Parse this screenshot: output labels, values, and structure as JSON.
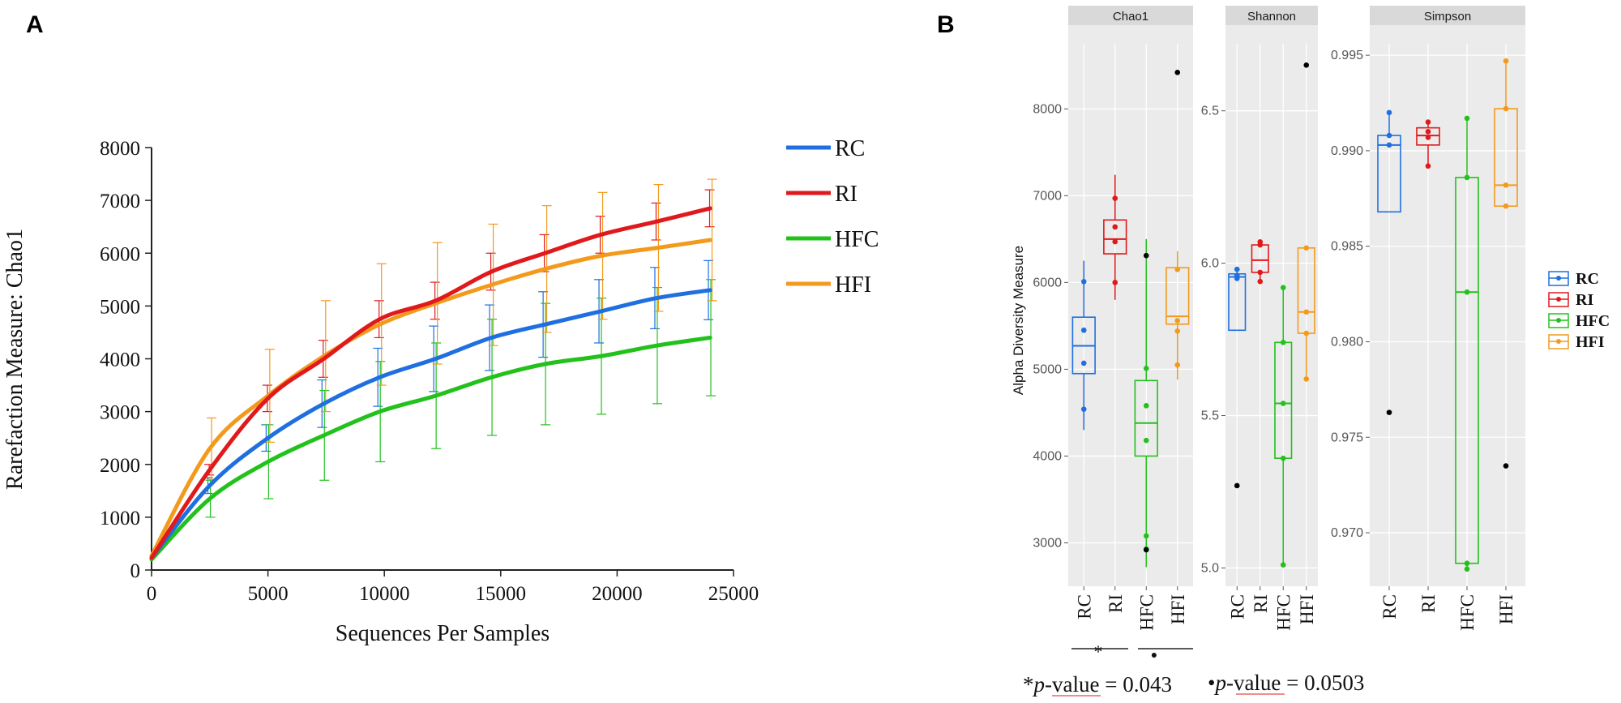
{
  "colors": {
    "RC": "#1f6fe0",
    "RI": "#e0191c",
    "HFC": "#23c11c",
    "HFI": "#f39a1d",
    "outlier": "#000000",
    "panel_bg": "#ebebeb",
    "strip_bg": "#d9d9d9"
  },
  "panels": {
    "a": "A",
    "b": "B"
  },
  "chart_data": [
    {
      "type": "line",
      "title": "",
      "xlabel": "Sequences Per Samples",
      "ylabel": "Rarefaction Measure: Chao1",
      "xlim": [
        0,
        25000
      ],
      "ylim": [
        0,
        8000
      ],
      "xticks": [
        "0",
        "5000",
        "10000",
        "15000",
        "20000",
        "25000"
      ],
      "yticks": [
        "0",
        "1000",
        "2000",
        "3000",
        "4000",
        "5000",
        "6000",
        "7000",
        "8000"
      ],
      "legend": [
        "RC",
        "RI",
        "HFC",
        "HFI"
      ],
      "series": [
        {
          "name": "RC",
          "x": [
            0,
            2500,
            5000,
            7400,
            9800,
            12200,
            14600,
            16900,
            19300,
            21700,
            24000
          ],
          "y": [
            230,
            1600,
            2500,
            3150,
            3650,
            4000,
            4400,
            4650,
            4900,
            5150,
            5300
          ],
          "err": [
            70,
            150,
            250,
            450,
            550,
            620,
            620,
            620,
            600,
            580,
            560
          ]
        },
        {
          "name": "RI",
          "x": [
            0,
            2500,
            5000,
            7400,
            9800,
            12200,
            14600,
            16900,
            19300,
            21700,
            24000
          ],
          "y": [
            230,
            1900,
            3250,
            4000,
            4750,
            5100,
            5650,
            6000,
            6350,
            6600,
            6850
          ],
          "err": [
            70,
            100,
            250,
            350,
            350,
            350,
            350,
            350,
            350,
            350,
            350
          ]
        },
        {
          "name": "HFC",
          "x": [
            0,
            2500,
            5000,
            7400,
            9800,
            12200,
            14600,
            16900,
            19300,
            21700,
            24000
          ],
          "y": [
            200,
            1350,
            2050,
            2550,
            3000,
            3300,
            3650,
            3900,
            4050,
            4250,
            4400
          ],
          "err": [
            70,
            350,
            700,
            850,
            950,
            1000,
            1100,
            1150,
            1100,
            1100,
            1100
          ]
        },
        {
          "name": "HFI",
          "x": [
            0,
            2500,
            5000,
            7400,
            9800,
            12200,
            14600,
            16900,
            19300,
            21700,
            24000
          ],
          "y": [
            270,
            2300,
            3300,
            4050,
            4650,
            5050,
            5400,
            5700,
            5950,
            6100,
            6250
          ],
          "err": [
            70,
            580,
            880,
            1050,
            1150,
            1150,
            1150,
            1200,
            1200,
            1200,
            1150
          ]
        }
      ]
    },
    {
      "type": "box",
      "facet": "Chao1",
      "ylabel": "Alpha Diversity Measure",
      "ylim": [
        2500,
        8750
      ],
      "yticks": [
        3000,
        4000,
        5000,
        6000,
        7000,
        8000
      ],
      "ytick_labels": [
        "3000",
        "4000",
        "5000",
        "6000",
        "7000",
        "8000"
      ],
      "categories": [
        "RC",
        "RI",
        "HFC",
        "HFI"
      ],
      "boxes": [
        {
          "q1": 4950,
          "median": 5270,
          "q3": 5600,
          "wlo": 4300,
          "whi": 6250,
          "points": [
            4540,
            5070,
            5450,
            6010
          ],
          "outliers": []
        },
        {
          "q1": 6330,
          "median": 6500,
          "q3": 6720,
          "wlo": 5800,
          "whi": 7240,
          "points": [
            6000,
            6470,
            6640,
            6970
          ],
          "outliers": []
        },
        {
          "q1": 4000,
          "median": 4380,
          "q3": 4870,
          "wlo": 2720,
          "whi": 6500,
          "points": [
            2930,
            3080,
            4180,
            4580,
            5010
          ],
          "outliers": [
            6310,
            2920
          ]
        },
        {
          "q1": 5520,
          "median": 5610,
          "q3": 6170,
          "wlo": 4880,
          "whi": 6360,
          "points": [
            5050,
            5440,
            5560,
            6150
          ],
          "outliers": [
            8420
          ]
        }
      ]
    },
    {
      "type": "box",
      "facet": "Shannon",
      "ylim": [
        4.94,
        6.72
      ],
      "yticks": [
        5.0,
        5.5,
        6.0,
        6.5
      ],
      "ytick_labels": [
        "5.0",
        "5.5",
        "6.0",
        "6.5"
      ],
      "categories": [
        "RC",
        "RI",
        "HFC",
        "HFI"
      ],
      "boxes": [
        {
          "q1": 5.78,
          "median": 5.955,
          "q3": 5.965,
          "wlo": 5.78,
          "whi": 5.98,
          "points": [
            5.95,
            5.96,
            5.98
          ],
          "outliers": [
            5.27
          ]
        },
        {
          "q1": 5.97,
          "median": 6.01,
          "q3": 6.06,
          "wlo": 5.94,
          "whi": 6.07,
          "points": [
            5.94,
            5.97,
            6.06,
            6.07
          ],
          "outliers": []
        },
        {
          "q1": 5.36,
          "median": 5.54,
          "q3": 5.74,
          "wlo": 5.01,
          "whi": 5.92,
          "points": [
            5.01,
            5.36,
            5.54,
            5.74,
            5.92
          ],
          "outliers": []
        },
        {
          "q1": 5.77,
          "median": 5.84,
          "q3": 6.05,
          "wlo": 5.62,
          "whi": 6.05,
          "points": [
            5.62,
            5.77,
            5.84,
            6.05
          ],
          "outliers": [
            6.65
          ]
        }
      ]
    },
    {
      "type": "box",
      "facet": "Simpson",
      "ylim": [
        0.9672,
        0.9956
      ],
      "yticks": [
        0.97,
        0.975,
        0.98,
        0.985,
        0.99,
        0.995
      ],
      "ytick_labels": [
        "0.970",
        "0.975",
        "0.980",
        "0.985",
        "0.990",
        "0.995"
      ],
      "categories": [
        "RC",
        "RI",
        "HFC",
        "HFI"
      ],
      "boxes": [
        {
          "q1": 0.9868,
          "median": 0.9903,
          "q3": 0.9908,
          "wlo": 0.9868,
          "whi": 0.992,
          "points": [
            0.9903,
            0.9908,
            0.992
          ],
          "outliers": [
            0.9763
          ]
        },
        {
          "q1": 0.9903,
          "median": 0.9908,
          "q3": 0.9912,
          "wlo": 0.9892,
          "whi": 0.9915,
          "points": [
            0.9892,
            0.9907,
            0.991,
            0.9915
          ],
          "outliers": []
        },
        {
          "q1": 0.9684,
          "median": 0.9826,
          "q3": 0.9886,
          "wlo": 0.9681,
          "whi": 0.9917,
          "points": [
            0.9681,
            0.9684,
            0.9826,
            0.9886,
            0.9917
          ],
          "outliers": []
        },
        {
          "q1": 0.9871,
          "median": 0.9882,
          "q3": 0.9922,
          "wlo": 0.9871,
          "whi": 0.9947,
          "points": [
            0.9871,
            0.9882,
            0.9922,
            0.9947
          ],
          "outliers": [
            0.9735
          ]
        }
      ]
    }
  ],
  "legend_b": [
    "RC",
    "RI",
    "HFC",
    "HFI"
  ],
  "significance": {
    "star": "*",
    "dot": "●"
  },
  "notes": {
    "note1_prefix": "*",
    "note1_italic": "p",
    "note1_rest": "-value = 0.043",
    "note2_prefix": "•",
    "note2_italic": "p",
    "note2_rest": "-value = 0.0503"
  }
}
